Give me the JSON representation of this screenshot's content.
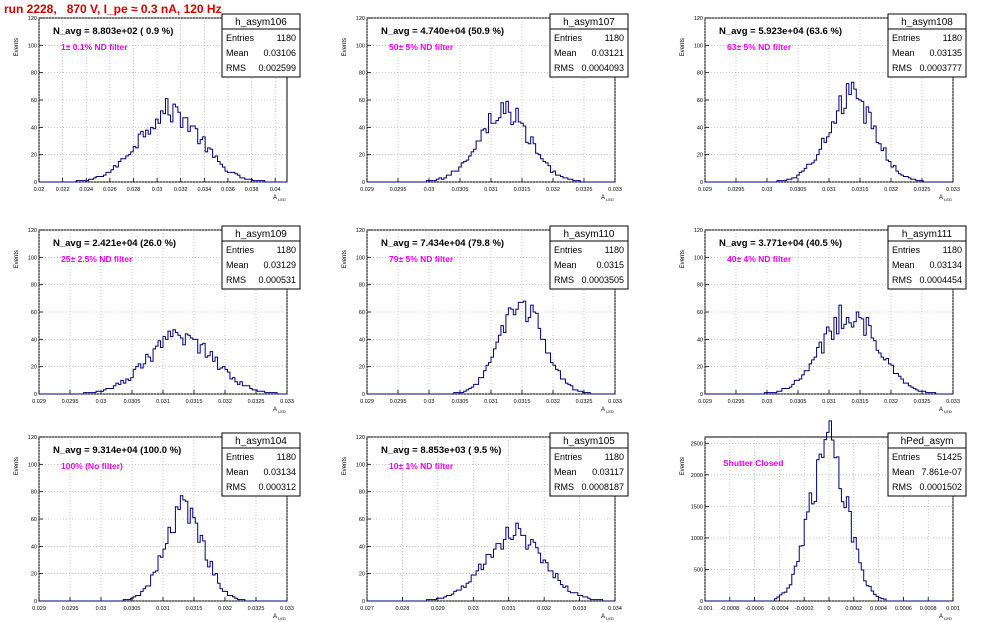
{
  "run_title": "run 2228,   870 V, I_pe ≈ 0.3 nA, 120 Hz",
  "stats_labels": {
    "entries": "Entries",
    "mean": "Mean",
    "rms": "RMS"
  },
  "ylabel": "Events",
  "xlabel_main": "A",
  "xlabel_sub": "LED",
  "colors": {
    "hist": "#00007a",
    "annotation": "#ee00ee",
    "title": "#d40000",
    "grid": "#aaaaaa"
  },
  "chart_data": [
    {
      "type": "histogram",
      "name": "h_asym106",
      "n_avg": "N_avg = 8.803e+02 ( 0.9 %)",
      "filter": "1± 0.1% ND filter",
      "entries": "1180",
      "mean": "0.03106",
      "rms": "0.002599",
      "xlim": [
        0.02,
        0.041
      ],
      "ylim": [
        0,
        120
      ],
      "xticks": [
        0.02,
        0.022,
        0.024,
        0.026,
        0.028,
        0.03,
        0.032,
        0.034,
        0.036,
        0.038,
        0.04
      ],
      "xticklabels": [
        "0.02",
        "0.022",
        "0.024",
        "0.026",
        "0.028",
        "0.03",
        "0.032",
        "0.034",
        "0.036",
        "0.038",
        "0.04"
      ],
      "yticks": [
        0,
        20,
        40,
        60,
        80,
        100,
        120
      ],
      "yticklabels": [
        "0",
        "20",
        "40",
        "60",
        "80",
        "100",
        "120"
      ],
      "bins": {
        "lo": 0.02,
        "hi": 0.041,
        "center": 0.03106,
        "sigma": 0.002599,
        "peak": 52
      }
    },
    {
      "type": "histogram",
      "name": "h_asym107",
      "n_avg": "N_avg = 4.740e+04 (50.9 %)",
      "filter": "50± 5% ND filter",
      "entries": "1180",
      "mean": "0.03121",
      "rms": "0.0004093",
      "xlim": [
        0.029,
        0.033
      ],
      "ylim": [
        0,
        120
      ],
      "xticks": [
        0.029,
        0.0295,
        0.03,
        0.0305,
        0.031,
        0.0315,
        0.032,
        0.0325,
        0.033
      ],
      "xticklabels": [
        "0.029",
        "0.0295",
        "0.03",
        "0.0305",
        "0.031",
        "0.0315",
        "0.032",
        "0.0325",
        "0.033"
      ],
      "yticks": [
        0,
        20,
        40,
        60,
        80,
        100,
        120
      ],
      "yticklabels": [
        "0",
        "20",
        "40",
        "60",
        "80",
        "100",
        "120"
      ],
      "bins": {
        "lo": 0.029,
        "hi": 0.033,
        "center": 0.03121,
        "sigma": 0.0004093,
        "peak": 52
      }
    },
    {
      "type": "histogram",
      "name": "h_asym108",
      "n_avg": "N_avg = 5.923e+04 (63.6 %)",
      "filter": "63± 5% ND filter",
      "entries": "1180",
      "mean": "0.03135",
      "rms": "0.0003777",
      "xlim": [
        0.029,
        0.033
      ],
      "ylim": [
        0,
        120
      ],
      "xticks": [
        0.029,
        0.0295,
        0.03,
        0.0305,
        0.031,
        0.0315,
        0.032,
        0.0325,
        0.033
      ],
      "xticklabels": [
        "0.029",
        "0.0295",
        "0.03",
        "0.0305",
        "0.031",
        "0.0315",
        "0.032",
        "0.0325",
        "0.033"
      ],
      "yticks": [
        0,
        20,
        40,
        60,
        80,
        100,
        120
      ],
      "yticklabels": [
        "0",
        "20",
        "40",
        "60",
        "80",
        "100",
        "120"
      ],
      "bins": {
        "lo": 0.029,
        "hi": 0.033,
        "center": 0.03135,
        "sigma": 0.0003777,
        "peak": 62
      }
    },
    {
      "type": "histogram",
      "name": "h_asym109",
      "n_avg": "N_avg = 2.421e+04 (26.0 %)",
      "filter": "25± 2.5% ND filter",
      "entries": "1180",
      "mean": "0.03129",
      "rms": "0.000531",
      "xlim": [
        0.029,
        0.033
      ],
      "ylim": [
        0,
        120
      ],
      "xticks": [
        0.029,
        0.0295,
        0.03,
        0.0305,
        0.031,
        0.0315,
        0.032,
        0.0325,
        0.033
      ],
      "xticklabels": [
        "0.029",
        "0.0295",
        "0.03",
        "0.0305",
        "0.031",
        "0.0315",
        "0.032",
        "0.0325",
        "0.033"
      ],
      "yticks": [
        0,
        20,
        40,
        60,
        80,
        100,
        120
      ],
      "yticklabels": [
        "0",
        "20",
        "40",
        "60",
        "80",
        "100",
        "120"
      ],
      "bins": {
        "lo": 0.029,
        "hi": 0.033,
        "center": 0.03129,
        "sigma": 0.000531,
        "peak": 42
      }
    },
    {
      "type": "histogram",
      "name": "h_asym110",
      "n_avg": "N_avg = 7.434e+04 (79.8 %)",
      "filter": "79± 5% ND filter",
      "entries": "1180",
      "mean": "0.0315",
      "rms": "0.0003505",
      "xlim": [
        0.029,
        0.033
      ],
      "ylim": [
        0,
        120
      ],
      "xticks": [
        0.029,
        0.0295,
        0.03,
        0.0305,
        0.031,
        0.0315,
        0.032,
        0.0325,
        0.033
      ],
      "xticklabels": [
        "0.029",
        "0.0295",
        "0.03",
        "0.0305",
        "0.031",
        "0.0315",
        "0.032",
        "0.0325",
        "0.033"
      ],
      "yticks": [
        0,
        20,
        40,
        60,
        80,
        100,
        120
      ],
      "yticklabels": [
        "0",
        "20",
        "40",
        "60",
        "80",
        "100",
        "120"
      ],
      "bins": {
        "lo": 0.029,
        "hi": 0.033,
        "center": 0.0315,
        "sigma": 0.0003505,
        "peak": 65
      }
    },
    {
      "type": "histogram",
      "name": "h_asym111",
      "n_avg": "N_avg = 3.771e+04 (40.5 %)",
      "filter": "40± 4% ND filter",
      "entries": "1180",
      "mean": "0.03134",
      "rms": "0.0004454",
      "xlim": [
        0.029,
        0.033
      ],
      "ylim": [
        0,
        120
      ],
      "xticks": [
        0.029,
        0.0295,
        0.03,
        0.0305,
        0.031,
        0.0315,
        0.032,
        0.0325,
        0.033
      ],
      "xticklabels": [
        "0.029",
        "0.0295",
        "0.03",
        "0.0305",
        "0.031",
        "0.0315",
        "0.032",
        "0.0325",
        "0.033"
      ],
      "yticks": [
        0,
        20,
        40,
        60,
        80,
        100,
        120
      ],
      "yticklabels": [
        "0",
        "20",
        "40",
        "60",
        "80",
        "100",
        "120"
      ],
      "bins": {
        "lo": 0.029,
        "hi": 0.033,
        "center": 0.03134,
        "sigma": 0.0004454,
        "peak": 59
      }
    },
    {
      "type": "histogram",
      "name": "h_asym104",
      "n_avg": "N_avg = 9.314e+04 (100.0 %)",
      "filter": "100% (No filter)",
      "entries": "1180",
      "mean": "0.03134",
      "rms": "0.000312",
      "xlim": [
        0.029,
        0.033
      ],
      "ylim": [
        0,
        120
      ],
      "xticks": [
        0.029,
        0.0295,
        0.03,
        0.0305,
        0.031,
        0.0315,
        0.032,
        0.0325,
        0.033
      ],
      "xticklabels": [
        "0.029",
        "0.0295",
        "0.03",
        "0.0305",
        "0.031",
        "0.0315",
        "0.032",
        "0.0325",
        "0.033"
      ],
      "yticks": [
        0,
        20,
        40,
        60,
        80,
        100,
        120
      ],
      "yticklabels": [
        "0",
        "20",
        "40",
        "60",
        "80",
        "100",
        "120"
      ],
      "bins": {
        "lo": 0.029,
        "hi": 0.033,
        "center": 0.03134,
        "sigma": 0.000312,
        "peak": 69
      }
    },
    {
      "type": "histogram",
      "name": "h_asym105",
      "n_avg": "N_avg = 8.853e+03 ( 9.5 %)",
      "filter": "10± 1% ND filter",
      "entries": "1180",
      "mean": "0.03117",
      "rms": "0.0008187",
      "xlim": [
        0.027,
        0.034
      ],
      "ylim": [
        0,
        120
      ],
      "xticks": [
        0.027,
        0.028,
        0.029,
        0.03,
        0.031,
        0.032,
        0.033,
        0.034
      ],
      "xticklabels": [
        "0.027",
        "0.028",
        "0.029",
        "0.03",
        "0.031",
        "0.032",
        "0.033",
        "0.034"
      ],
      "yticks": [
        0,
        20,
        40,
        60,
        80,
        100,
        120
      ],
      "yticklabels": [
        "0",
        "20",
        "40",
        "60",
        "80",
        "100",
        "120"
      ],
      "bins": {
        "lo": 0.027,
        "hi": 0.034,
        "center": 0.03117,
        "sigma": 0.0008187,
        "peak": 50
      }
    },
    {
      "type": "histogram",
      "name": "hPed_asym",
      "n_avg": "",
      "filter": "Shutter Closed",
      "entries": "51425",
      "mean": "7.861e-07",
      "rms": "0.0001502",
      "xlim": [
        -0.001,
        0.001
      ],
      "ylim": [
        0,
        2600
      ],
      "xticks": [
        -0.001,
        -0.0008,
        -0.0006,
        -0.0004,
        -0.0002,
        0,
        0.0002,
        0.0004,
        0.0006,
        0.0008,
        0.001
      ],
      "xticklabels": [
        "-0.001",
        "-0.0008",
        "-0.0006",
        "-0.0004",
        "-0.0002",
        "0",
        "0.0002",
        "0.0004",
        "0.0006",
        "0.0008",
        "0.001"
      ],
      "yticks": [
        0,
        500,
        1000,
        1500,
        2000,
        2500
      ],
      "yticklabels": [
        "0",
        "500",
        "1000",
        "1500",
        "2000",
        "2500"
      ],
      "bins": {
        "lo": -0.001,
        "hi": 0.001,
        "center": 0.0,
        "sigma": 0.0001502,
        "peak": 2480
      }
    }
  ]
}
